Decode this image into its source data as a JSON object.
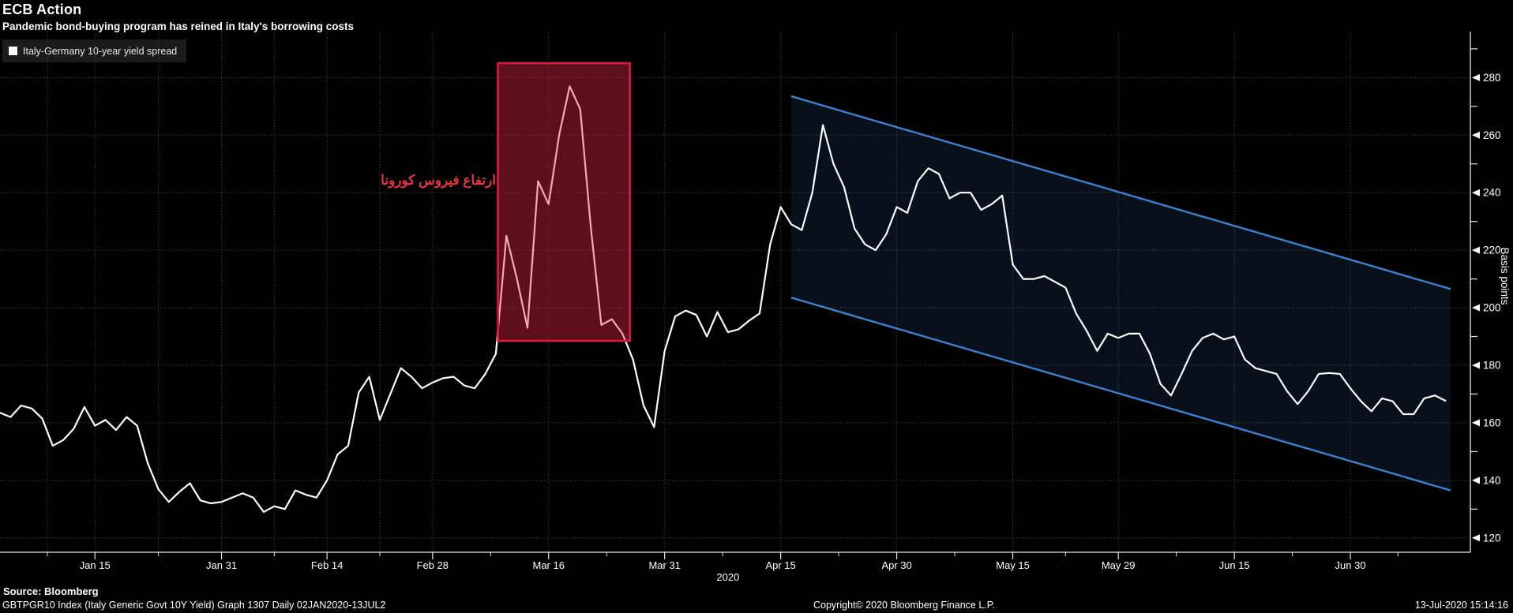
{
  "header": {
    "title": "ECB Action",
    "subtitle": "Pandemic bond-buying program has reined in Italy's borrowing costs"
  },
  "legend": {
    "label": "Italy-Germany 10-year yield spread",
    "swatch_color": "#ffffff"
  },
  "annotation": {
    "text": "ارتفاع فيروس كورونا",
    "color": "#e8323c"
  },
  "footer": {
    "source": "Source: Bloomberg",
    "index_line": "GBTPGR10 Index (Italy Generic Govt 10Y Yield) Graph 1307  Daily 02JAN2020-13JUL2",
    "copyright": "Copyright© 2020 Bloomberg Finance L.P.",
    "datetime": "13-Jul-2020 15:14:16"
  },
  "chart_data": {
    "type": "line",
    "title": "ECB Action",
    "subtitle": "Pandemic bond-buying program has reined in Italy's borrowing costs",
    "ylabel": "Basis points",
    "x_unit": "business days from 02-Jan-2020 to 13-Jul-2020",
    "x_tick_labels": [
      "Jan 15",
      "Jan 31",
      "Feb 14",
      "Feb 28",
      "Mar 16",
      "Mar 31",
      "Apr 15",
      "Apr 30",
      "May 15",
      "May 29",
      "Jun 15",
      "Jun 30"
    ],
    "x_tick_day_index": [
      9,
      21,
      31,
      41,
      52,
      63,
      74,
      85,
      96,
      106,
      117,
      128
    ],
    "x_minor_day_index": [
      4.5,
      15,
      26,
      36,
      46.5,
      57.5,
      68.5,
      79.5,
      90.5,
      101,
      111.5,
      122.5,
      132.5
    ],
    "x_minor_gridline_days": [
      4.5,
      15,
      26,
      36
    ],
    "x_axis_year": "2020",
    "x_axis_year_day": 69,
    "day_span": 137.5,
    "y_ticks": [
      120,
      140,
      160,
      180,
      200,
      220,
      240,
      260,
      280
    ],
    "y_minor_ticks": [
      130,
      150,
      170,
      190,
      210,
      230,
      250,
      270,
      290
    ],
    "ylim": [
      115,
      296
    ],
    "grid": true,
    "legend_position": "top-left",
    "colors": {
      "background": "#000000",
      "series": "#ffffff",
      "grid": "#4f4f4f",
      "axis": "#e6e6e6",
      "text": "#ffffff",
      "box_border": "#e01840",
      "box_fill": "rgba(232,40,70,0.40)",
      "channel_line": "#3c82d2",
      "channel_fill": "rgba(60,130,210,0.13)"
    },
    "series": [
      {
        "name": "Italy-Germany 10-year yield spread",
        "color": "#ffffff",
        "values": [
          163.5,
          162,
          166,
          165,
          161.5,
          152,
          154,
          158,
          165.5,
          159,
          161,
          157.5,
          162,
          159,
          146,
          137,
          132.5,
          136,
          139,
          133,
          132,
          132.5,
          134,
          135.5,
          134,
          129,
          131,
          130,
          136.5,
          135,
          134,
          140,
          149,
          152,
          170.5,
          176,
          161,
          170,
          179,
          176,
          172,
          174,
          175.5,
          176,
          173,
          172,
          177,
          184,
          225,
          210,
          193,
          244,
          236,
          260,
          277,
          269,
          228,
          194,
          196,
          191,
          182,
          166,
          158.5,
          185,
          197,
          199,
          197.5,
          190,
          198.5,
          191.5,
          192.5,
          195.5,
          198,
          222,
          235,
          229,
          227,
          240,
          263.5,
          250,
          242,
          227.5,
          222,
          220,
          225.5,
          235,
          233,
          244,
          248.5,
          246.5,
          238,
          240,
          240,
          234,
          236,
          239,
          215,
          210,
          210,
          211,
          209,
          207,
          198,
          192,
          185,
          191,
          189.5,
          191,
          191,
          184,
          173.5,
          169.5,
          177,
          185,
          189.5,
          191,
          189,
          190,
          182,
          179,
          178,
          177,
          171,
          166.5,
          171,
          177,
          177.3,
          177,
          172,
          167.5,
          164,
          168.5,
          167.5,
          163,
          163,
          168.5,
          169.5,
          167.7
        ]
      }
    ],
    "highlight_box": {
      "label": "coronavirus-spike-region",
      "day_start": 47.2,
      "day_end": 59.7,
      "value_low": 188.5,
      "value_high": 285
    },
    "channel": {
      "label": "descending-trend-channel",
      "day_start": 75,
      "day_end": 137.5,
      "upper_start": 273.5,
      "upper_end": 206.5,
      "lower_start": 203.5,
      "lower_end": 136.5
    }
  }
}
